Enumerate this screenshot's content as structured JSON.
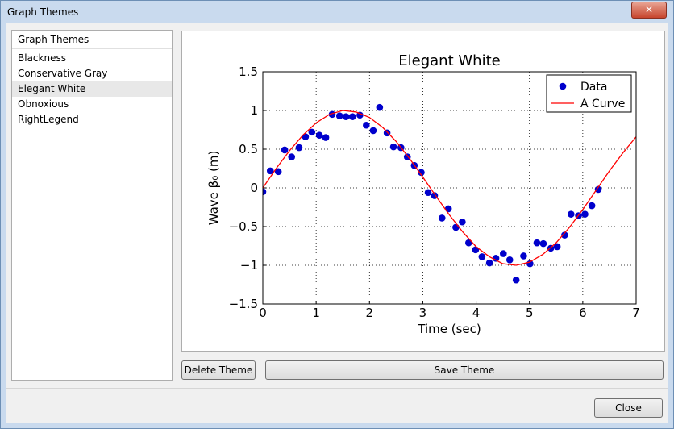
{
  "window": {
    "title": "Graph Themes"
  },
  "list": {
    "header": "Graph Themes",
    "items": [
      "Blackness",
      "Conservative Gray",
      "Elegant White",
      "Obnoxious",
      "RightLegend"
    ],
    "selected_index": 2
  },
  "buttons": {
    "delete": "Delete Theme",
    "save": "Save Theme",
    "close": "Close"
  },
  "chart_data": {
    "type": "scatter",
    "title": "Elegant White",
    "xlabel": "Time (sec)",
    "ylabel": "Wave β₀ (m)",
    "xlim": [
      0,
      7
    ],
    "ylim": [
      -1.5,
      1.5
    ],
    "xticks": [
      0,
      1,
      2,
      3,
      4,
      5,
      6,
      7
    ],
    "yticks": [
      {
        "value": -1.5,
        "label": "−1.5"
      },
      {
        "value": -1,
        "label": "−1"
      },
      {
        "value": -0.5,
        "label": "−0.5"
      },
      0,
      0.5,
      1,
      1.5
    ],
    "grid": true,
    "legend": "upper right",
    "series": [
      {
        "name": "Data",
        "type": "scatter",
        "color": "#0000cc",
        "x": [
          0,
          0.14,
          0.29,
          0.41,
          0.54,
          0.68,
          0.8,
          0.92,
          1.06,
          1.18,
          1.3,
          1.44,
          1.56,
          1.68,
          1.82,
          1.94,
          2.07,
          2.19,
          2.33,
          2.45,
          2.59,
          2.71,
          2.84,
          2.97,
          3.1,
          3.22,
          3.36,
          3.48,
          3.62,
          3.74,
          3.86,
          3.99,
          4.11,
          4.25,
          4.37,
          4.51,
          4.63,
          4.75,
          4.89,
          5.01,
          5.14,
          5.26,
          5.4,
          5.52,
          5.66,
          5.78,
          5.92,
          6.04,
          6.17,
          6.29
        ],
        "values": [
          -0.05,
          0.22,
          0.21,
          0.49,
          0.4,
          0.52,
          0.66,
          0.72,
          0.68,
          0.65,
          0.95,
          0.93,
          0.92,
          0.92,
          0.94,
          0.81,
          0.74,
          1.04,
          0.71,
          0.53,
          0.52,
          0.4,
          0.29,
          0.2,
          -0.06,
          -0.1,
          -0.39,
          -0.27,
          -0.51,
          -0.44,
          -0.71,
          -0.8,
          -0.89,
          -0.97,
          -0.91,
          -0.85,
          -0.93,
          -1.19,
          -0.88,
          -0.98,
          -0.71,
          -0.72,
          -0.78,
          -0.76,
          -0.61,
          -0.34,
          -0.36,
          -0.34,
          -0.23,
          -0.02
        ]
      },
      {
        "name": "A Curve",
        "type": "line",
        "color": "#ff0000",
        "x": [
          0,
          0.25,
          0.5,
          0.75,
          1,
          1.25,
          1.5,
          1.75,
          2,
          2.25,
          2.5,
          2.75,
          3,
          3.25,
          3.5,
          3.75,
          4,
          4.25,
          4.5,
          4.75,
          5,
          5.25,
          5.5,
          5.75,
          6,
          6.25,
          6.5,
          6.75,
          7
        ],
        "values": [
          0,
          0.25,
          0.48,
          0.68,
          0.84,
          0.95,
          1.0,
          0.98,
          0.91,
          0.78,
          0.6,
          0.38,
          0.14,
          -0.11,
          -0.35,
          -0.57,
          -0.76,
          -0.89,
          -0.98,
          -1.0,
          -0.96,
          -0.86,
          -0.71,
          -0.51,
          -0.28,
          -0.03,
          0.22,
          0.45,
          0.66
        ]
      }
    ]
  }
}
